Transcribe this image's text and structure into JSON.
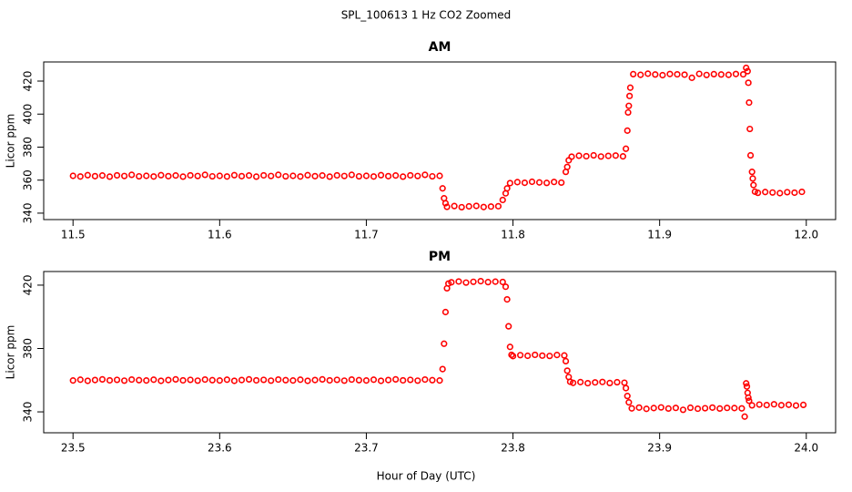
{
  "title": "SPL_100613  1 Hz CO2 Zoomed",
  "x_label": "Hour of Day (UTC)",
  "chart_data": [
    {
      "type": "scatter",
      "title": "AM",
      "y_label": "Licor ppm",
      "xlim": [
        11.48,
        12.02
      ],
      "xticks": [
        11.5,
        11.6,
        11.7,
        11.8,
        11.9,
        {
          "value": 12,
          "label": "12.0"
        }
      ],
      "ylim": [
        336.1,
        431.6
      ],
      "yticks": [
        340,
        360,
        380,
        400,
        420
      ],
      "series": [
        {
          "color": "#ff0000",
          "x": [
            11.5,
            11.505,
            11.51,
            11.515,
            11.52,
            11.525,
            11.53,
            11.535,
            11.54,
            11.545,
            11.55,
            11.555,
            11.56,
            11.565,
            11.57,
            11.575,
            11.58,
            11.585,
            11.59,
            11.595,
            11.6,
            11.605,
            11.61,
            11.615,
            11.62,
            11.625,
            11.63,
            11.635,
            11.64,
            11.645,
            11.65,
            11.655,
            11.66,
            11.665,
            11.67,
            11.675,
            11.68,
            11.685,
            11.69,
            11.695,
            11.7,
            11.705,
            11.71,
            11.715,
            11.72,
            11.725,
            11.73,
            11.735,
            11.74,
            11.745,
            11.75,
            11.752,
            11.753,
            11.754,
            11.755,
            11.76,
            11.765,
            11.77,
            11.775,
            11.78,
            11.785,
            11.79,
            11.793,
            11.795,
            11.796,
            11.798,
            11.803,
            11.808,
            11.813,
            11.818,
            11.823,
            11.828,
            11.833,
            11.836,
            11.837,
            11.838,
            11.84,
            11.845,
            11.85,
            11.855,
            11.86,
            11.865,
            11.87,
            11.875,
            11.877,
            11.878,
            11.8785,
            11.879,
            11.8795,
            11.88,
            11.882,
            11.887,
            11.892,
            11.897,
            11.902,
            11.907,
            11.912,
            11.917,
            11.922,
            11.927,
            11.932,
            11.937,
            11.942,
            11.947,
            11.952,
            11.957,
            11.959,
            11.96,
            11.9605,
            11.961,
            11.9615,
            11.962,
            11.963,
            11.9635,
            11.964,
            11.965,
            11.967,
            11.972,
            11.977,
            11.982,
            11.987,
            11.992,
            11.997
          ],
          "values": [
            362.6,
            362.2,
            363.0,
            362.4,
            362.8,
            362.1,
            362.9,
            362.5,
            363.2,
            362.3,
            362.6,
            362.2,
            363.0,
            362.4,
            362.8,
            362.1,
            362.9,
            362.5,
            363.2,
            362.3,
            362.6,
            362.2,
            363.0,
            362.4,
            362.8,
            362.1,
            362.9,
            362.5,
            363.2,
            362.3,
            362.6,
            362.2,
            363.0,
            362.4,
            362.8,
            362.1,
            362.9,
            362.5,
            363.2,
            362.3,
            362.6,
            362.2,
            363.0,
            362.4,
            362.8,
            362.1,
            362.9,
            362.5,
            363.2,
            362.3,
            362.6,
            355,
            349,
            346,
            343.8,
            344.3,
            343.6,
            344.1,
            344.4,
            343.7,
            344.0,
            344.2,
            348,
            352,
            355,
            358.2,
            358.8,
            358.4,
            359.0,
            358.6,
            358.3,
            358.9,
            358.5,
            365,
            368,
            372,
            374.2,
            374.8,
            374.5,
            375.0,
            374.3,
            374.7,
            374.9,
            374.4,
            379,
            390,
            401,
            405,
            411,
            416,
            424.2,
            423.8,
            424.5,
            424.0,
            423.6,
            424.3,
            424.1,
            423.9,
            422.0,
            424.4,
            423.7,
            424.2,
            424.0,
            423.8,
            424.3,
            424.1,
            428,
            426,
            419,
            407,
            391,
            375,
            365,
            361,
            357,
            353,
            352.3,
            352.8,
            352.5,
            352.1,
            352.7,
            352.4,
            352.9
          ]
        }
      ]
    },
    {
      "type": "scatter",
      "title": "PM",
      "y_label": "Licor ppm",
      "xlim": [
        23.48,
        24.02
      ],
      "xticks": [
        23.5,
        23.6,
        23.7,
        23.8,
        23.9,
        {
          "value": 24,
          "label": "24.0"
        }
      ],
      "ylim": [
        326.8,
        428.6
      ],
      "yticks": [
        340,
        380,
        420
      ],
      "series": [
        {
          "color": "#ff0000",
          "x": [
            23.5,
            23.505,
            23.51,
            23.515,
            23.52,
            23.525,
            23.53,
            23.535,
            23.54,
            23.545,
            23.55,
            23.555,
            23.56,
            23.565,
            23.57,
            23.575,
            23.58,
            23.585,
            23.59,
            23.595,
            23.6,
            23.605,
            23.61,
            23.615,
            23.62,
            23.625,
            23.63,
            23.635,
            23.64,
            23.645,
            23.65,
            23.655,
            23.66,
            23.665,
            23.67,
            23.675,
            23.68,
            23.685,
            23.69,
            23.695,
            23.7,
            23.705,
            23.71,
            23.715,
            23.72,
            23.725,
            23.73,
            23.735,
            23.74,
            23.745,
            23.75,
            23.752,
            23.753,
            23.754,
            23.755,
            23.756,
            23.758,
            23.763,
            23.768,
            23.773,
            23.778,
            23.783,
            23.788,
            23.793,
            23.795,
            23.796,
            23.797,
            23.798,
            23.799,
            23.8,
            23.805,
            23.81,
            23.815,
            23.82,
            23.825,
            23.83,
            23.835,
            23.836,
            23.837,
            23.838,
            23.839,
            23.841,
            23.846,
            23.851,
            23.856,
            23.861,
            23.866,
            23.871,
            23.876,
            23.877,
            23.878,
            23.879,
            23.881,
            23.886,
            23.891,
            23.896,
            23.901,
            23.906,
            23.911,
            23.916,
            23.921,
            23.926,
            23.931,
            23.936,
            23.941,
            23.946,
            23.951,
            23.956,
            23.958,
            23.959,
            23.9595,
            23.96,
            23.9605,
            23.961,
            23.963,
            23.968,
            23.973,
            23.978,
            23.983,
            23.988,
            23.993,
            23.998
          ],
          "values": [
            359.8,
            360.3,
            359.6,
            360.1,
            360.5,
            359.9,
            360.2,
            359.7,
            360.4,
            360.0,
            359.8,
            360.3,
            359.6,
            360.1,
            360.5,
            359.9,
            360.2,
            359.7,
            360.4,
            360.0,
            359.8,
            360.3,
            359.6,
            360.1,
            360.5,
            359.9,
            360.2,
            359.7,
            360.4,
            360.0,
            359.8,
            360.3,
            359.6,
            360.1,
            360.5,
            359.9,
            360.2,
            359.7,
            360.4,
            360.0,
            359.8,
            360.3,
            359.6,
            360.1,
            360.5,
            359.9,
            360.2,
            359.7,
            360.4,
            360.0,
            359.8,
            367,
            383,
            403,
            418,
            421,
            421.8,
            422.3,
            421.6,
            422.1,
            422.5,
            421.9,
            422.2,
            422.0,
            419,
            411,
            394,
            381,
            376,
            375.2,
            375.8,
            375.4,
            376.0,
            375.5,
            375.3,
            375.9,
            375.6,
            372,
            366,
            362,
            359,
            358.3,
            358.8,
            358.1,
            358.6,
            358.9,
            358.2,
            358.7,
            358.4,
            355,
            350,
            346,
            342.2,
            342.7,
            341.9,
            342.4,
            342.8,
            342.1,
            342.5,
            341.3,
            342.6,
            342.0,
            342.3,
            342.7,
            342.1,
            342.5,
            342.4,
            342.2,
            337,
            358,
            356,
            352,
            349,
            347,
            344.1,
            344.6,
            344.3,
            344.8,
            344.2,
            344.5,
            344.0,
            344.4
          ]
        }
      ]
    }
  ]
}
